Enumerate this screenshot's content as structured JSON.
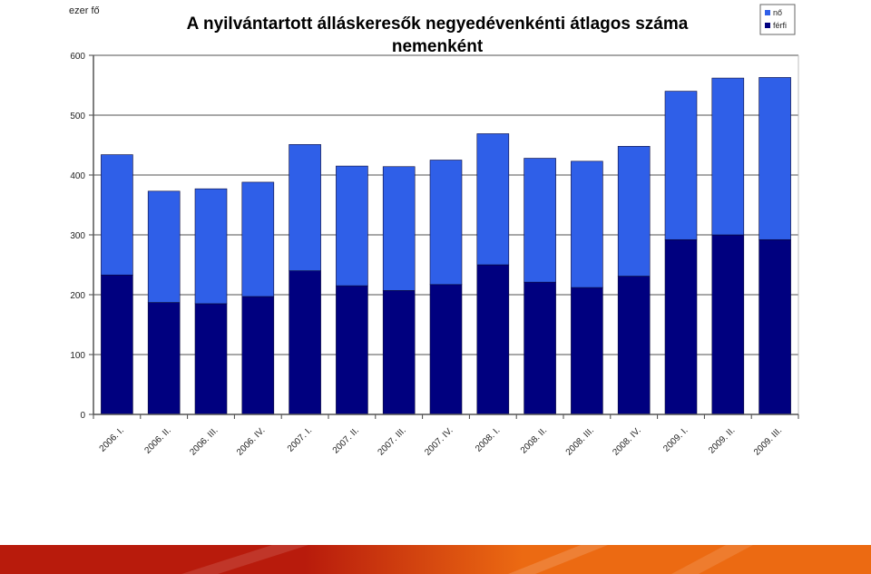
{
  "chart_data": {
    "type": "bar",
    "stacked": true,
    "title": "A nyilvántartott álláskeresők negyedévenkénti átlagos száma",
    "subtitle": "nemenként",
    "ylabel": "ezer fő",
    "xlabel": "",
    "ylim": [
      0,
      600
    ],
    "yticks": [
      0,
      100,
      200,
      300,
      400,
      500,
      600
    ],
    "grid": true,
    "legend_position": "top-right",
    "categories": [
      "2006. I.",
      "2006. II.",
      "2006. III.",
      "2006. IV.",
      "2007. I.",
      "2007. II.",
      "2007. III.",
      "2007. IV.",
      "2008. I.",
      "2008. II.",
      "2008. III.",
      "2008. IV.",
      "2009. I.",
      "2009. II.",
      "2009. III."
    ],
    "series": [
      {
        "name": "férfi",
        "color": "#00007f",
        "values": [
          233,
          187,
          185,
          197,
          240,
          215,
          207,
          217,
          250,
          221,
          212,
          231,
          292,
          300,
          292
        ]
      },
      {
        "name": "nő",
        "color": "#2f5fe8",
        "values": [
          201,
          186,
          192,
          191,
          211,
          200,
          207,
          208,
          219,
          207,
          211,
          217,
          248,
          262,
          271
        ]
      }
    ],
    "legend_order": [
      "nő",
      "férfi"
    ]
  },
  "colors": {
    "grid": "#8c8c8c",
    "frame": "#bdbdbd",
    "footer_dark": "#b81b0c",
    "footer_light": "#ec6a12"
  }
}
